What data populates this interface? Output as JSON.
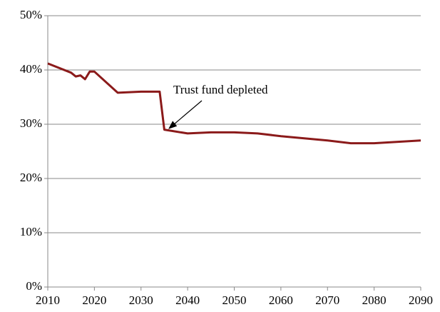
{
  "chart_data": {
    "type": "line",
    "annotation": "Trust fund depleted",
    "x": [
      2010,
      2015,
      2016,
      2017,
      2018,
      2019,
      2020,
      2025,
      2030,
      2034,
      2035,
      2040,
      2045,
      2050,
      2055,
      2060,
      2070,
      2075,
      2080,
      2090
    ],
    "values": [
      41.2,
      39.5,
      38.8,
      39.0,
      38.3,
      39.7,
      39.7,
      35.8,
      36.0,
      36.0,
      29.0,
      28.3,
      28.5,
      28.5,
      28.3,
      27.8,
      27.0,
      26.5,
      26.5,
      27.0
    ],
    "color": "#8b1a1a",
    "xlim": [
      2010,
      2090
    ],
    "xticks": [
      2010,
      2020,
      2030,
      2040,
      2050,
      2060,
      2070,
      2080,
      2090
    ],
    "ylim": [
      0,
      50
    ],
    "yticks": [
      {
        "value": 0,
        "label": "0%"
      },
      {
        "value": 10,
        "label": "10%"
      },
      {
        "value": 20,
        "label": "20%"
      },
      {
        "value": 30,
        "label": "30%"
      },
      {
        "value": 40,
        "label": "40%"
      },
      {
        "value": 50,
        "label": "50%"
      }
    ],
    "grid": true
  }
}
